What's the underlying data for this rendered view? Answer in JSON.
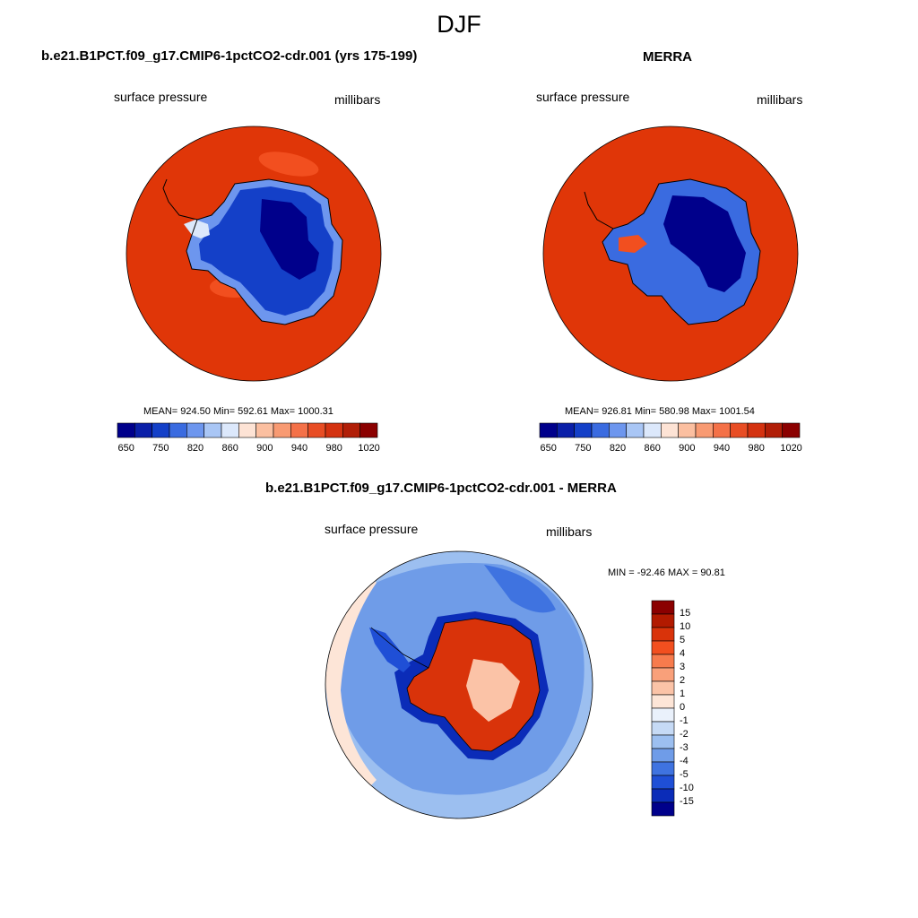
{
  "figure": {
    "title": "DJF"
  },
  "panels": {
    "model": {
      "title": "b.e21.B1PCT.f09_g17.CMIP6-1pctCO2-cdr.001 (yrs 175-199)",
      "left_label": "surface pressure",
      "right_label": "millibars",
      "stats": "MEAN= 924.50  Min= 592.61  Max= 1000.31"
    },
    "obs": {
      "title": "MERRA",
      "left_label": "surface pressure",
      "right_label": "millibars",
      "stats": "MEAN= 926.81  Min= 580.98  Max= 1001.54"
    },
    "diff": {
      "title": "b.e21.B1PCT.f09_g17.CMIP6-1pctCO2-cdr.001 - MERRA",
      "left_label": "surface pressure",
      "right_label": "millibars",
      "stats": "MIN = -92.46 MAX =  90.81"
    }
  },
  "colorbars": {
    "abs": {
      "tick_labels": [
        "650",
        "750",
        "820",
        "860",
        "900",
        "940",
        "980",
        "1020"
      ],
      "colors": [
        "#00008b",
        "#0a1fa8",
        "#1440c8",
        "#3a6be0",
        "#6d96ee",
        "#a9c6f5",
        "#dce8fb",
        "#fde3d5",
        "#fbbfa0",
        "#f89a72",
        "#f47148",
        "#e84d24",
        "#d43210",
        "#b11e07",
        "#8b0000"
      ]
    },
    "diff": {
      "tick_labels": [
        "15",
        "10",
        "5",
        "4",
        "3",
        "2",
        "1",
        "0",
        "-1",
        "-2",
        "-3",
        "-4",
        "-5",
        "-10",
        "-15"
      ],
      "colors": [
        "#8b0000",
        "#b21a00",
        "#d9330a",
        "#f24f1f",
        "#f77b4d",
        "#f9a07a",
        "#fbc3a7",
        "#fde5d7",
        "#eaf1fb",
        "#c6daf5",
        "#9cbff0",
        "#6f9ce8",
        "#3f73e0",
        "#1f4fd6",
        "#0b2cb8",
        "#00008b"
      ]
    }
  },
  "map_colors": {
    "ocean_high": "#e03608",
    "ocean_high_alt": "#f24f1f",
    "ice_low": "#00008b",
    "ice_mid": "#1440c8",
    "ice_edge": "#3a6be0",
    "diff_ocean": "#6f9ce8",
    "diff_pos": "#d9330a",
    "diff_neg": "#0b2cb8",
    "coast": "#000000"
  }
}
